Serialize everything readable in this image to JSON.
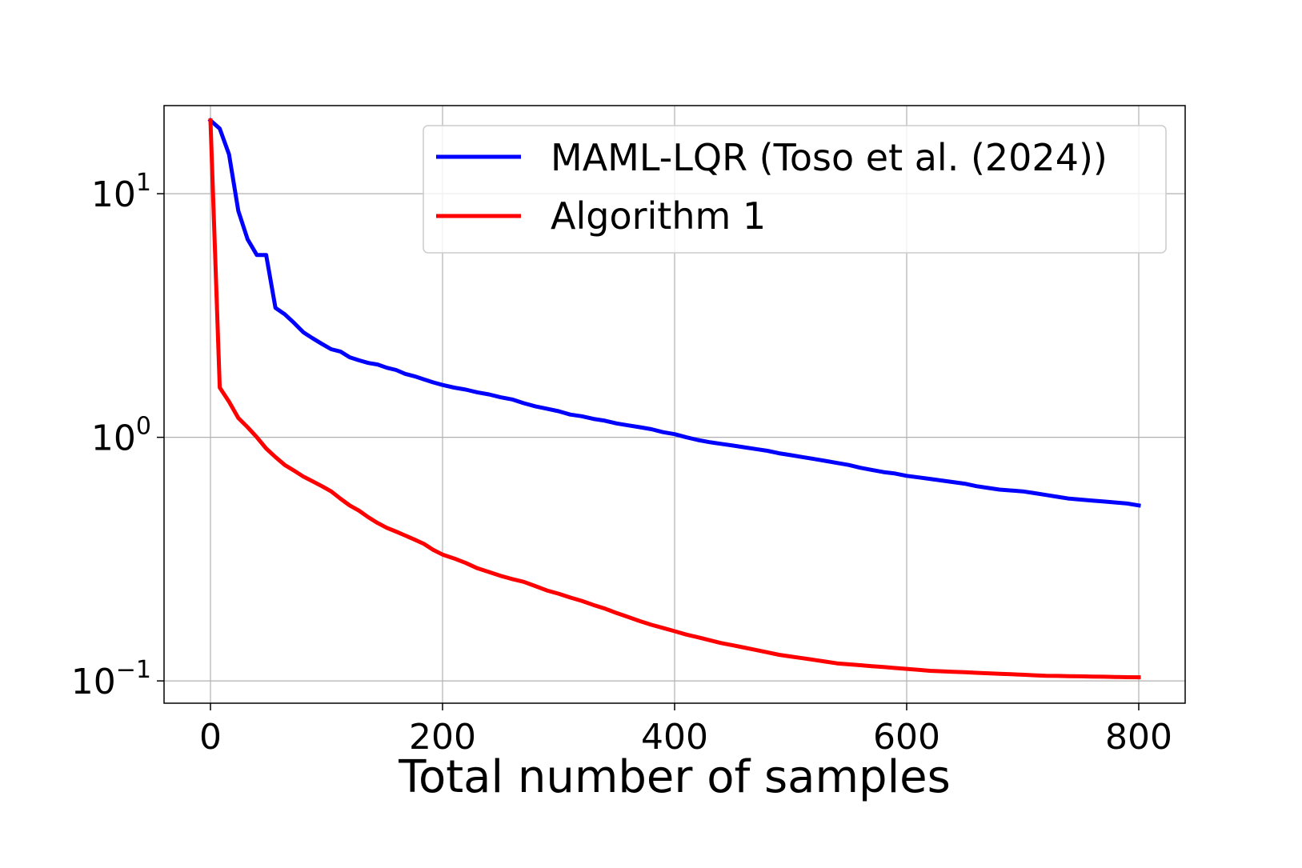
{
  "chart_data": {
    "type": "line",
    "title": "",
    "xlabel": "Total number of samples",
    "ylabel": "",
    "xscale": "linear",
    "yscale": "log",
    "xlim": [
      -40,
      840
    ],
    "ylim": [
      0.081,
      23
    ],
    "grid": true,
    "legend_position": "top-right",
    "x_ticks": [
      {
        "value": 0,
        "label": "0"
      },
      {
        "value": 200,
        "label": "200"
      },
      {
        "value": 400,
        "label": "400"
      },
      {
        "value": 600,
        "label": "600"
      },
      {
        "value": 800,
        "label": "800"
      }
    ],
    "y_ticks": [
      {
        "value": 10,
        "base": "10",
        "exponent": "1"
      },
      {
        "value": 1,
        "base": "10",
        "exponent": "0"
      },
      {
        "value": 0.1,
        "base": "10",
        "exponent": "−1"
      }
    ],
    "series": [
      {
        "name": "MAML-LQR (Toso et al. (2024))",
        "color": "#0000ff",
        "x": [
          0,
          8,
          16,
          24,
          32,
          40,
          48,
          56,
          64,
          72,
          80,
          88,
          96,
          104,
          112,
          120,
          128,
          136,
          144,
          152,
          160,
          168,
          176,
          184,
          192,
          200,
          210,
          220,
          230,
          240,
          250,
          260,
          270,
          280,
          290,
          300,
          310,
          320,
          330,
          340,
          350,
          360,
          370,
          380,
          390,
          400,
          410,
          420,
          430,
          440,
          450,
          460,
          470,
          480,
          490,
          500,
          510,
          520,
          530,
          540,
          550,
          560,
          570,
          580,
          590,
          600,
          610,
          620,
          630,
          640,
          650,
          660,
          670,
          680,
          690,
          700,
          710,
          720,
          730,
          740,
          750,
          760,
          770,
          780,
          790,
          800
        ],
        "y": [
          20.0,
          18.5,
          14.5,
          8.5,
          6.5,
          5.6,
          5.6,
          3.4,
          3.2,
          2.95,
          2.7,
          2.55,
          2.42,
          2.3,
          2.25,
          2.13,
          2.07,
          2.02,
          1.99,
          1.93,
          1.89,
          1.82,
          1.78,
          1.73,
          1.68,
          1.64,
          1.6,
          1.57,
          1.53,
          1.5,
          1.46,
          1.43,
          1.38,
          1.34,
          1.31,
          1.28,
          1.24,
          1.22,
          1.19,
          1.17,
          1.14,
          1.12,
          1.1,
          1.08,
          1.05,
          1.03,
          1.0,
          0.975,
          0.955,
          0.94,
          0.925,
          0.91,
          0.895,
          0.88,
          0.86,
          0.845,
          0.83,
          0.815,
          0.8,
          0.785,
          0.77,
          0.75,
          0.735,
          0.72,
          0.71,
          0.695,
          0.685,
          0.675,
          0.665,
          0.655,
          0.645,
          0.63,
          0.62,
          0.61,
          0.605,
          0.6,
          0.59,
          0.58,
          0.57,
          0.56,
          0.555,
          0.55,
          0.545,
          0.54,
          0.535,
          0.525
        ]
      },
      {
        "name": "Algorithm 1",
        "color": "#ff0000",
        "x": [
          0,
          8,
          16,
          24,
          32,
          40,
          48,
          56,
          64,
          72,
          80,
          88,
          96,
          104,
          112,
          120,
          128,
          136,
          144,
          152,
          160,
          168,
          176,
          184,
          192,
          200,
          210,
          220,
          230,
          240,
          250,
          260,
          270,
          280,
          290,
          300,
          310,
          320,
          330,
          340,
          350,
          360,
          370,
          380,
          390,
          400,
          410,
          420,
          430,
          440,
          450,
          460,
          470,
          480,
          490,
          500,
          510,
          520,
          530,
          540,
          550,
          560,
          570,
          580,
          590,
          600,
          610,
          620,
          630,
          640,
          650,
          660,
          670,
          680,
          690,
          700,
          710,
          720,
          730,
          740,
          750,
          760,
          770,
          780,
          790,
          800
        ],
        "y": [
          20.0,
          1.6,
          1.4,
          1.2,
          1.1,
          1.0,
          0.9,
          0.83,
          0.77,
          0.73,
          0.69,
          0.66,
          0.63,
          0.6,
          0.56,
          0.525,
          0.5,
          0.47,
          0.445,
          0.425,
          0.41,
          0.395,
          0.38,
          0.365,
          0.345,
          0.33,
          0.318,
          0.305,
          0.29,
          0.28,
          0.27,
          0.262,
          0.255,
          0.245,
          0.235,
          0.228,
          0.22,
          0.213,
          0.205,
          0.198,
          0.19,
          0.183,
          0.176,
          0.17,
          0.165,
          0.16,
          0.155,
          0.151,
          0.147,
          0.143,
          0.14,
          0.137,
          0.134,
          0.131,
          0.128,
          0.126,
          0.124,
          0.122,
          0.12,
          0.118,
          0.117,
          0.116,
          0.115,
          0.114,
          0.113,
          0.112,
          0.111,
          0.11,
          0.1095,
          0.109,
          0.1085,
          0.108,
          0.1075,
          0.107,
          0.1065,
          0.106,
          0.1055,
          0.105,
          0.1048,
          0.1046,
          0.1044,
          0.1042,
          0.104,
          0.1038,
          0.1036,
          0.1035
        ]
      }
    ]
  }
}
